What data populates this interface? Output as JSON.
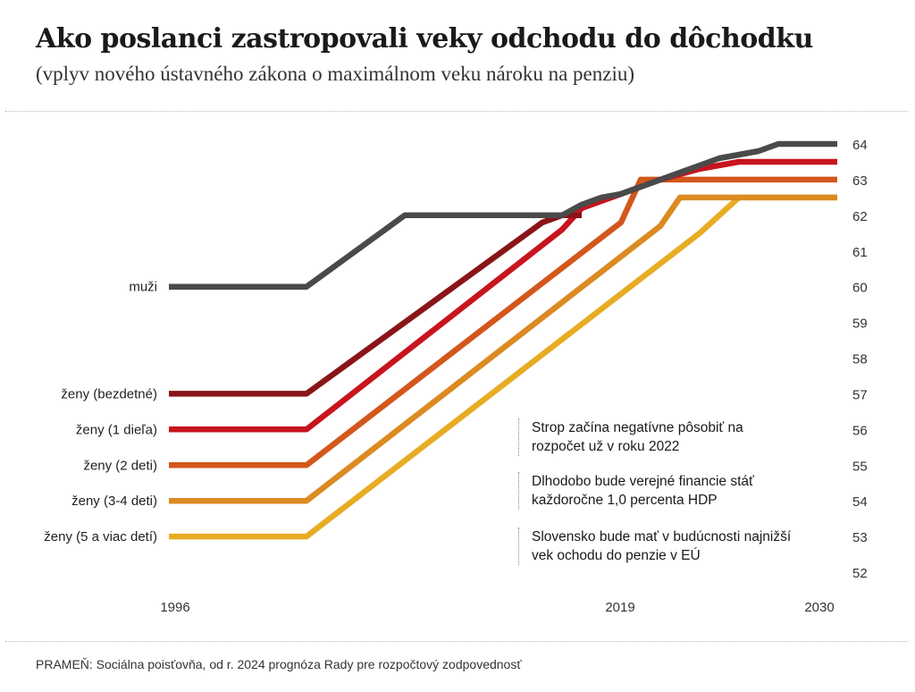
{
  "header": {
    "title": "Ako poslanci zastropovali veky odchodu do dôchodku",
    "subtitle": "(vplyv nového ústavného zákona o maximálnom veku nároku na penziu)"
  },
  "source": "PRAMEŇ: Sociálna poisťovňa, od r. 2024 prognóza Rady pre rozpočtový zodpovednosť",
  "annotations": [
    "Strop začína negatívne pôsobiť na rozpočet už v roku 2022",
    "Dlhodobo bude verejné financie stáť každoročne 1,0 percenta HDP",
    "Slovensko bude mať v budúcnosti najnižší vek ochodu do penzie v EÚ"
  ],
  "chart_data": {
    "type": "line",
    "x_ticks": [
      "1996",
      "2019",
      "2030"
    ],
    "y_ticks": [
      52,
      53,
      54,
      55,
      56,
      57,
      58,
      59,
      60,
      61,
      62,
      63,
      64
    ],
    "ylim": [
      52,
      64
    ],
    "xlim": [
      1996,
      2030
    ],
    "series": [
      {
        "name": "ženy (5 a viac detí)",
        "color": "#e8ac24",
        "x": [
          1996,
          2003,
          2023,
          2025,
          2030
        ],
        "y": [
          53,
          53,
          61.5,
          62.5,
          62.5
        ]
      },
      {
        "name": "ženy (3-4 deti)",
        "color": "#dc8a22",
        "x": [
          1996,
          2003,
          2021,
          2022,
          2030
        ],
        "y": [
          54,
          54,
          61.7,
          62.5,
          62.5
        ]
      },
      {
        "name": "ženy (2 deti)",
        "color": "#d3571c",
        "x": [
          1996,
          2003,
          2019,
          2020,
          2030
        ],
        "y": [
          55,
          55,
          61.8,
          63,
          63
        ]
      },
      {
        "name": "ženy (1 dieľa)",
        "color": "#c8141e",
        "x": [
          1996,
          2003,
          2016,
          2017,
          2019,
          2021,
          2023,
          2025,
          2026,
          2030
        ],
        "y": [
          56,
          56,
          61.6,
          62.2,
          62.6,
          63,
          63.3,
          63.5,
          63.5,
          63.5
        ]
      },
      {
        "name": "ženy (bezdetné)",
        "color": "#8a1518",
        "x": [
          1996,
          2003,
          2015,
          2016,
          2017
        ],
        "y": [
          57,
          57,
          61.8,
          62,
          62
        ]
      },
      {
        "name": "muži",
        "color": "#4a4a4a",
        "x": [
          1996,
          2003,
          2008,
          2016,
          2017,
          2018,
          2019,
          2020,
          2021,
          2022,
          2023,
          2024,
          2025,
          2026,
          2027,
          2028,
          2029,
          2030
        ],
        "y": [
          60,
          60,
          62,
          62,
          62.3,
          62.5,
          62.6,
          62.8,
          63,
          63.2,
          63.4,
          63.6,
          63.7,
          63.8,
          64,
          64,
          64,
          64
        ]
      }
    ]
  }
}
